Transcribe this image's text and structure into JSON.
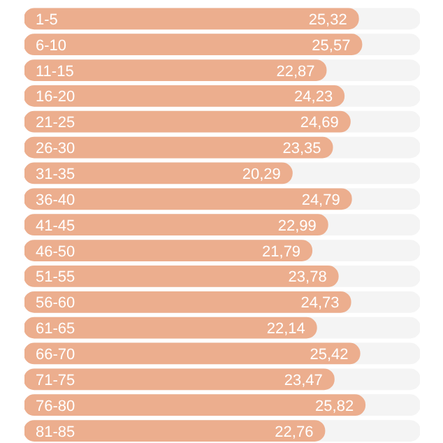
{
  "chart_data": {
    "type": "bar",
    "orientation": "horizontal",
    "categories": [
      "1-5",
      "6-10",
      "11-15",
      "16-20",
      "21-25",
      "26-30",
      "31-35",
      "36-40",
      "41-45",
      "46-50",
      "51-55",
      "56-60",
      "61-65",
      "66-70",
      "71-75",
      "76-80",
      "81-85"
    ],
    "values": [
      25.32,
      25.57,
      22.87,
      24.23,
      24.69,
      23.35,
      20.29,
      24.79,
      22.99,
      21.79,
      23.78,
      24.73,
      22.14,
      25.42,
      23.47,
      25.82,
      22.76
    ],
    "value_labels": [
      "25,32",
      "25,57",
      "22,87",
      "24,23",
      "24,69",
      "23,35",
      "20,29",
      "24,79",
      "22,99",
      "21,79",
      "23,78",
      "24,73",
      "22,14",
      "25,42",
      "23,47",
      "25,82",
      "22,76"
    ],
    "color": "#ecae8e",
    "xlim": [
      0,
      30
    ],
    "grid": false
  }
}
